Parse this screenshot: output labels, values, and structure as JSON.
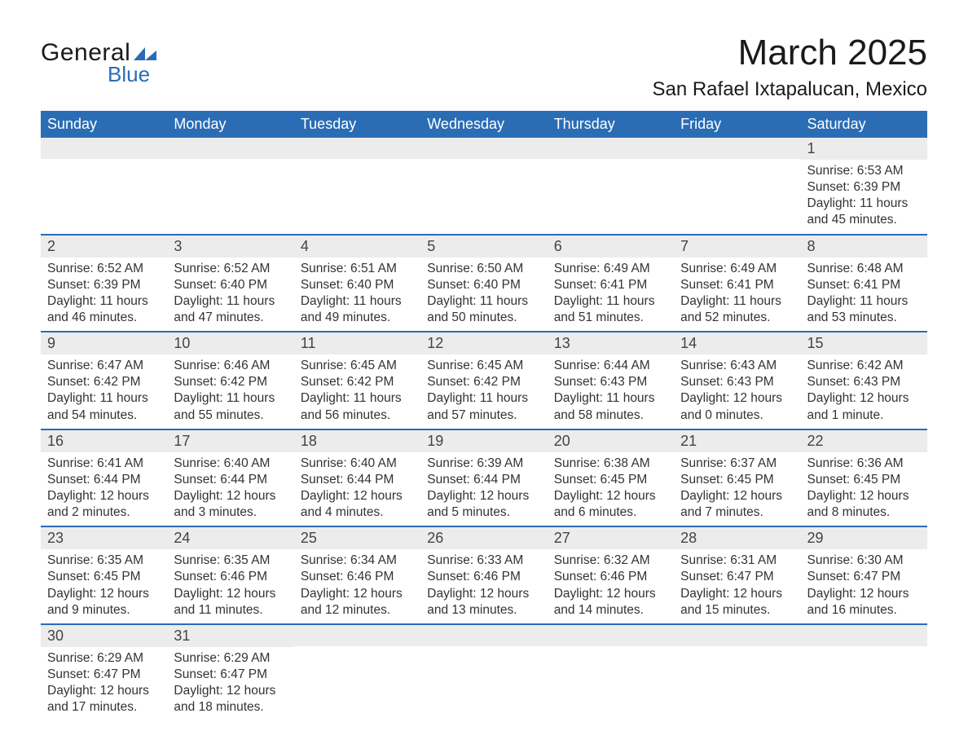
{
  "logo": {
    "text1": "General",
    "text2": "Blue",
    "brand_color": "#2a6db5"
  },
  "title": "March 2025",
  "location": "San Rafael Ixtapalucan, Mexico",
  "colors": {
    "header_bg": "#2a6db5",
    "header_text": "#ffffff",
    "daynum_bg": "#ececec",
    "border": "#2a6db5",
    "text": "#333333"
  },
  "typography": {
    "title_fontsize": 44,
    "location_fontsize": 24,
    "header_fontsize": 18,
    "daynum_fontsize": 18,
    "body_fontsize": 15.5
  },
  "day_headers": [
    "Sunday",
    "Monday",
    "Tuesday",
    "Wednesday",
    "Thursday",
    "Friday",
    "Saturday"
  ],
  "weeks": [
    [
      null,
      null,
      null,
      null,
      null,
      null,
      {
        "n": "1",
        "sunrise": "6:53 AM",
        "sunset": "6:39 PM",
        "daylight": "11 hours and 45 minutes."
      }
    ],
    [
      {
        "n": "2",
        "sunrise": "6:52 AM",
        "sunset": "6:39 PM",
        "daylight": "11 hours and 46 minutes."
      },
      {
        "n": "3",
        "sunrise": "6:52 AM",
        "sunset": "6:40 PM",
        "daylight": "11 hours and 47 minutes."
      },
      {
        "n": "4",
        "sunrise": "6:51 AM",
        "sunset": "6:40 PM",
        "daylight": "11 hours and 49 minutes."
      },
      {
        "n": "5",
        "sunrise": "6:50 AM",
        "sunset": "6:40 PM",
        "daylight": "11 hours and 50 minutes."
      },
      {
        "n": "6",
        "sunrise": "6:49 AM",
        "sunset": "6:41 PM",
        "daylight": "11 hours and 51 minutes."
      },
      {
        "n": "7",
        "sunrise": "6:49 AM",
        "sunset": "6:41 PM",
        "daylight": "11 hours and 52 minutes."
      },
      {
        "n": "8",
        "sunrise": "6:48 AM",
        "sunset": "6:41 PM",
        "daylight": "11 hours and 53 minutes."
      }
    ],
    [
      {
        "n": "9",
        "sunrise": "6:47 AM",
        "sunset": "6:42 PM",
        "daylight": "11 hours and 54 minutes."
      },
      {
        "n": "10",
        "sunrise": "6:46 AM",
        "sunset": "6:42 PM",
        "daylight": "11 hours and 55 minutes."
      },
      {
        "n": "11",
        "sunrise": "6:45 AM",
        "sunset": "6:42 PM",
        "daylight": "11 hours and 56 minutes."
      },
      {
        "n": "12",
        "sunrise": "6:45 AM",
        "sunset": "6:42 PM",
        "daylight": "11 hours and 57 minutes."
      },
      {
        "n": "13",
        "sunrise": "6:44 AM",
        "sunset": "6:43 PM",
        "daylight": "11 hours and 58 minutes."
      },
      {
        "n": "14",
        "sunrise": "6:43 AM",
        "sunset": "6:43 PM",
        "daylight": "12 hours and 0 minutes."
      },
      {
        "n": "15",
        "sunrise": "6:42 AM",
        "sunset": "6:43 PM",
        "daylight": "12 hours and 1 minute."
      }
    ],
    [
      {
        "n": "16",
        "sunrise": "6:41 AM",
        "sunset": "6:44 PM",
        "daylight": "12 hours and 2 minutes."
      },
      {
        "n": "17",
        "sunrise": "6:40 AM",
        "sunset": "6:44 PM",
        "daylight": "12 hours and 3 minutes."
      },
      {
        "n": "18",
        "sunrise": "6:40 AM",
        "sunset": "6:44 PM",
        "daylight": "12 hours and 4 minutes."
      },
      {
        "n": "19",
        "sunrise": "6:39 AM",
        "sunset": "6:44 PM",
        "daylight": "12 hours and 5 minutes."
      },
      {
        "n": "20",
        "sunrise": "6:38 AM",
        "sunset": "6:45 PM",
        "daylight": "12 hours and 6 minutes."
      },
      {
        "n": "21",
        "sunrise": "6:37 AM",
        "sunset": "6:45 PM",
        "daylight": "12 hours and 7 minutes."
      },
      {
        "n": "22",
        "sunrise": "6:36 AM",
        "sunset": "6:45 PM",
        "daylight": "12 hours and 8 minutes."
      }
    ],
    [
      {
        "n": "23",
        "sunrise": "6:35 AM",
        "sunset": "6:45 PM",
        "daylight": "12 hours and 9 minutes."
      },
      {
        "n": "24",
        "sunrise": "6:35 AM",
        "sunset": "6:46 PM",
        "daylight": "12 hours and 11 minutes."
      },
      {
        "n": "25",
        "sunrise": "6:34 AM",
        "sunset": "6:46 PM",
        "daylight": "12 hours and 12 minutes."
      },
      {
        "n": "26",
        "sunrise": "6:33 AM",
        "sunset": "6:46 PM",
        "daylight": "12 hours and 13 minutes."
      },
      {
        "n": "27",
        "sunrise": "6:32 AM",
        "sunset": "6:46 PM",
        "daylight": "12 hours and 14 minutes."
      },
      {
        "n": "28",
        "sunrise": "6:31 AM",
        "sunset": "6:47 PM",
        "daylight": "12 hours and 15 minutes."
      },
      {
        "n": "29",
        "sunrise": "6:30 AM",
        "sunset": "6:47 PM",
        "daylight": "12 hours and 16 minutes."
      }
    ],
    [
      {
        "n": "30",
        "sunrise": "6:29 AM",
        "sunset": "6:47 PM",
        "daylight": "12 hours and 17 minutes."
      },
      {
        "n": "31",
        "sunrise": "6:29 AM",
        "sunset": "6:47 PM",
        "daylight": "12 hours and 18 minutes."
      },
      null,
      null,
      null,
      null,
      null
    ]
  ],
  "labels": {
    "sunrise": "Sunrise:",
    "sunset": "Sunset:",
    "daylight": "Daylight:"
  }
}
